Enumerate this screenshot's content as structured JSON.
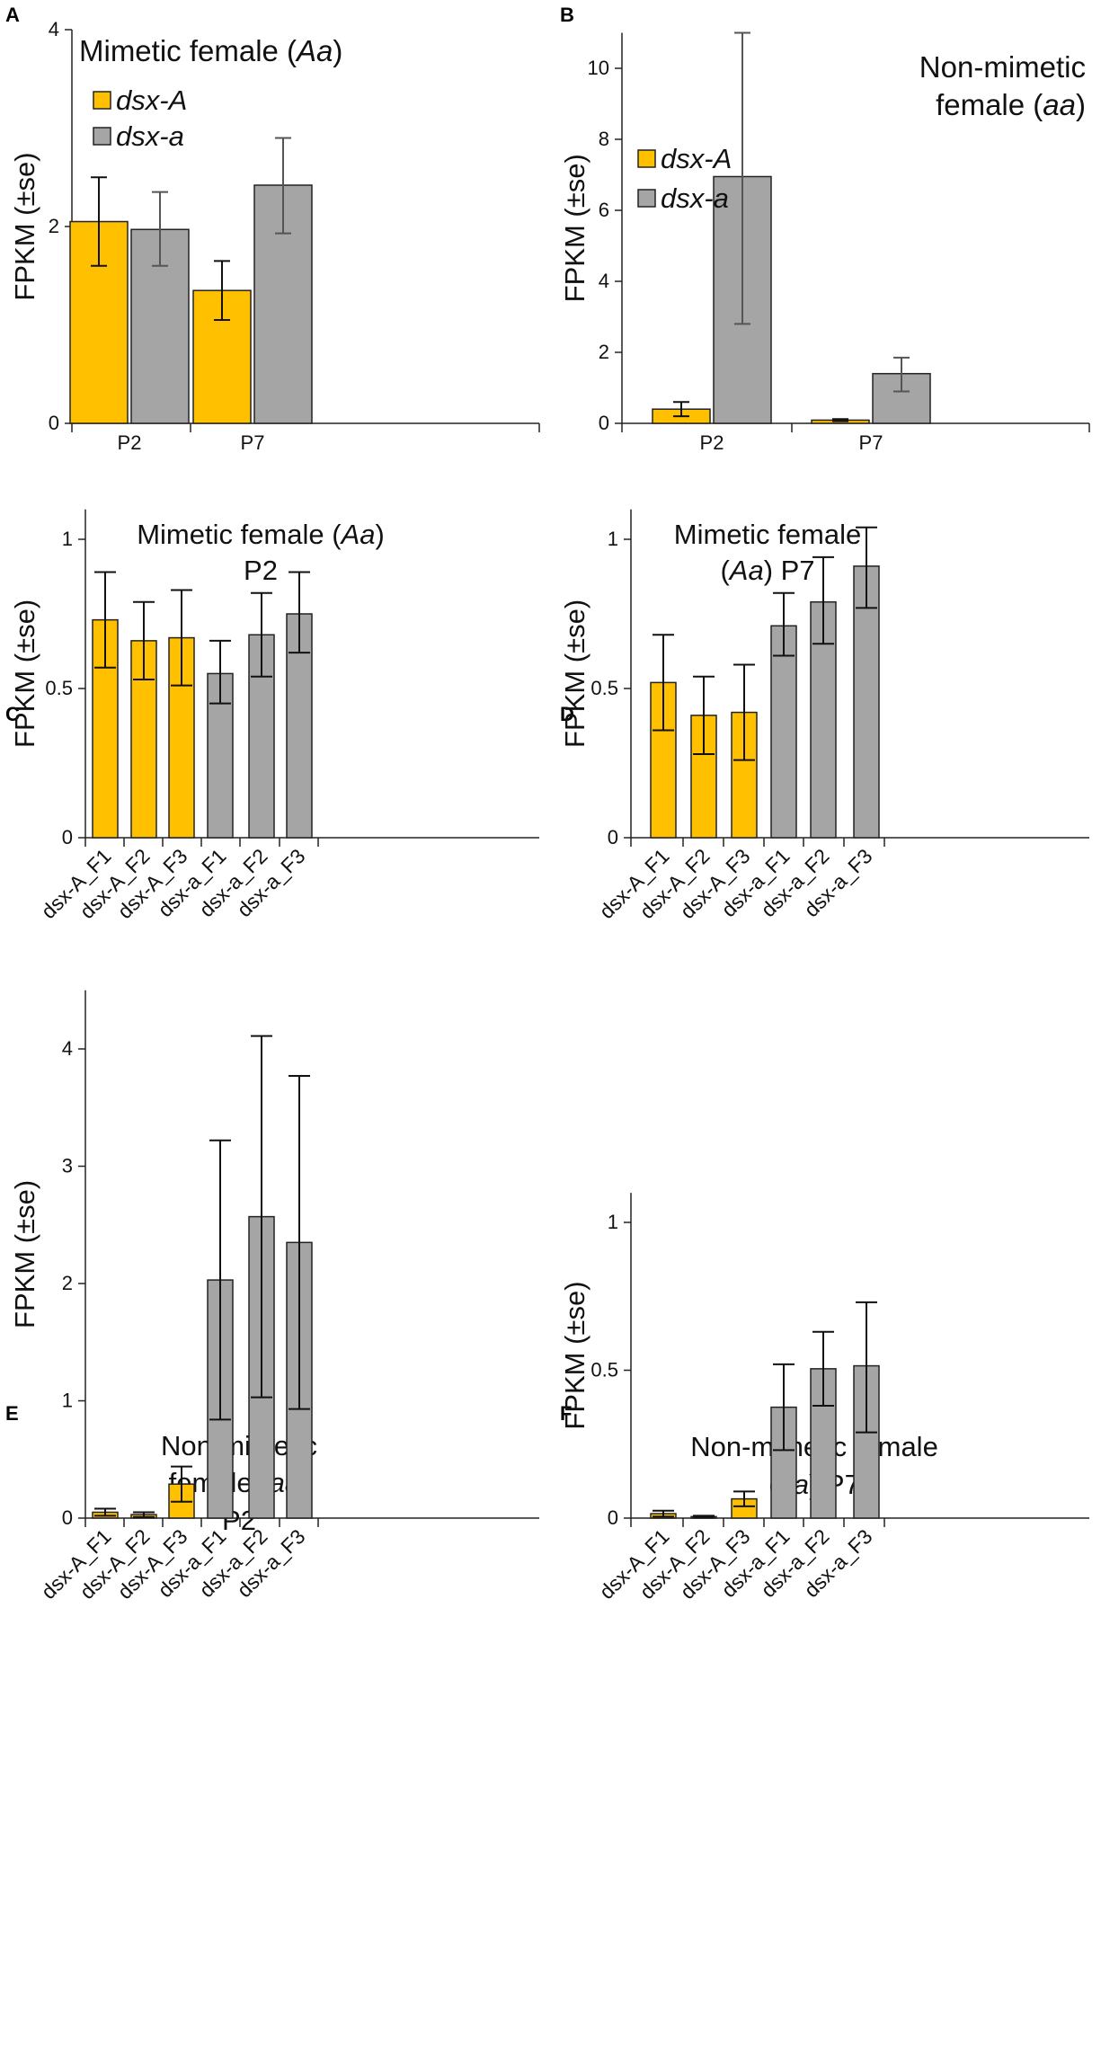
{
  "colors": {
    "dsxA": "#FFC000",
    "dsxa": "#A5A5A5",
    "err_bar_light": "#555555",
    "err_bar_dark": "#111111"
  },
  "chart_data": [
    {
      "panel": "A",
      "type": "bar",
      "ylabel": "FPKM (±se)",
      "title_lines": [
        [
          {
            "t": "Mimetic female ("
          },
          {
            "t": "Aa",
            "i": true
          },
          {
            "t": ")"
          }
        ]
      ],
      "categories": [
        "P2",
        "P7"
      ],
      "ylim": [
        0,
        4
      ],
      "yticks": [
        "0",
        "2",
        "4"
      ],
      "ytick_values": [
        0,
        2,
        4
      ],
      "series": [
        {
          "name": "dsx-A",
          "values": [
            2.05,
            1.35
          ],
          "err_low": [
            1.6,
            1.05
          ],
          "err_high": [
            2.5,
            1.65
          ]
        },
        {
          "name": "dsx-a",
          "values": [
            1.97,
            2.42
          ],
          "err_low": [
            1.6,
            1.93
          ],
          "err_high": [
            2.35,
            2.9
          ]
        }
      ],
      "legend": [
        "dsx-A",
        "dsx-a"
      ],
      "legend_position": "top-left"
    },
    {
      "panel": "B",
      "type": "bar",
      "ylabel": "FPKM (±se)",
      "title_lines": [
        [
          {
            "t": "Non-mimetic"
          }
        ],
        [
          {
            "t": "female ("
          },
          {
            "t": "aa",
            "i": true
          },
          {
            "t": ")"
          }
        ]
      ],
      "categories": [
        "P2",
        "P7"
      ],
      "ylim": [
        0,
        11
      ],
      "yticks": [
        "0",
        "2",
        "4",
        "6",
        "8",
        "10"
      ],
      "ytick_values": [
        0,
        2,
        4,
        6,
        8,
        10
      ],
      "series": [
        {
          "name": "dsx-A",
          "values": [
            0.4,
            0.09
          ],
          "err_low": [
            0.2,
            0.06
          ],
          "err_high": [
            0.6,
            0.12
          ]
        },
        {
          "name": "dsx-a",
          "values": [
            6.95,
            1.4
          ],
          "err_low": [
            2.8,
            0.9
          ],
          "err_high": [
            11.0,
            1.85
          ]
        }
      ],
      "legend": [
        "dsx-A",
        "dsx-a"
      ],
      "legend_position": "middle-right"
    },
    {
      "panel": "C",
      "type": "bar",
      "ylabel": "FPKM (±se)",
      "title_lines": [
        [
          {
            "t": "Mimetic female ("
          },
          {
            "t": "Aa",
            "i": true
          },
          {
            "t": ")"
          }
        ],
        [
          {
            "t": "P2"
          }
        ]
      ],
      "categories": [
        "dsx-A_F1",
        "dsx-A_F2",
        "dsx-A_F3",
        "dsx-a_F1",
        "dsx-a_F2",
        "dsx-a_F3"
      ],
      "ylim": [
        0,
        1.1
      ],
      "yticks": [
        "0",
        "0.5",
        "1"
      ],
      "ytick_values": [
        0,
        0.5,
        1
      ],
      "values": [
        0.73,
        0.66,
        0.67,
        0.55,
        0.68,
        0.75
      ],
      "err_low": [
        0.57,
        0.53,
        0.51,
        0.45,
        0.54,
        0.62
      ],
      "err_high": [
        0.89,
        0.79,
        0.83,
        0.66,
        0.82,
        0.89
      ],
      "groups": [
        "dsx-A",
        "dsx-A",
        "dsx-A",
        "dsx-a",
        "dsx-a",
        "dsx-a"
      ]
    },
    {
      "panel": "D",
      "type": "bar",
      "ylabel": "FPKM (±se)",
      "title_lines": [
        [
          {
            "t": "Mimetic female"
          }
        ],
        [
          {
            "t": "("
          },
          {
            "t": "Aa",
            "i": true
          },
          {
            "t": ") P7"
          }
        ]
      ],
      "categories": [
        "dsx-A_F1",
        "dsx-A_F2",
        "dsx-A_F3",
        "dsx-a_F1",
        "dsx-a_F2",
        "dsx-a_F3"
      ],
      "ylim": [
        0,
        1.1
      ],
      "yticks": [
        "0",
        "0.5",
        "1"
      ],
      "ytick_values": [
        0,
        0.5,
        1
      ],
      "values": [
        0.52,
        0.41,
        0.42,
        0.71,
        0.79,
        0.91
      ],
      "err_low": [
        0.36,
        0.28,
        0.26,
        0.61,
        0.65,
        0.77
      ],
      "err_high": [
        0.68,
        0.54,
        0.58,
        0.82,
        0.94,
        1.04
      ],
      "groups": [
        "dsx-A",
        "dsx-A",
        "dsx-A",
        "dsx-a",
        "dsx-a",
        "dsx-a"
      ]
    },
    {
      "panel": "E",
      "type": "bar",
      "ylabel": "FPKM (±se)",
      "title_lines": [
        [
          {
            "t": "Non-mimetic"
          }
        ],
        [
          {
            "t": "female ("
          },
          {
            "t": "aa",
            "i": true
          },
          {
            "t": ")"
          }
        ],
        [
          {
            "t": "P2"
          }
        ]
      ],
      "categories": [
        "dsx-A_F1",
        "dsx-A_F2",
        "dsx-A_F3",
        "dsx-a_F1",
        "dsx-a_F2",
        "dsx-a_F3"
      ],
      "ylim": [
        0,
        4.5
      ],
      "yticks": [
        "0",
        "1",
        "2",
        "3",
        "4"
      ],
      "ytick_values": [
        0,
        1,
        2,
        3,
        4
      ],
      "values": [
        0.05,
        0.03,
        0.29,
        2.03,
        2.57,
        2.35
      ],
      "err_low": [
        0.02,
        0.01,
        0.14,
        0.84,
        1.03,
        0.93
      ],
      "err_high": [
        0.08,
        0.05,
        0.44,
        3.22,
        4.11,
        3.77
      ],
      "groups": [
        "dsx-A",
        "dsx-A",
        "dsx-A",
        "dsx-a",
        "dsx-a",
        "dsx-a"
      ]
    },
    {
      "panel": "F",
      "type": "bar",
      "ylabel": "FPKM (±se)",
      "title_lines": [
        [
          {
            "t": "Non-mimetic female"
          }
        ],
        [
          {
            "t": "("
          },
          {
            "t": "aa",
            "i": true
          },
          {
            "t": ") P7"
          }
        ]
      ],
      "categories": [
        "dsx-A_F1",
        "dsx-A_F2",
        "dsx-A_F3",
        "dsx-a_F1",
        "dsx-a_F2",
        "dsx-a_F3"
      ],
      "ylim": [
        0,
        1.1
      ],
      "yticks": [
        "0",
        "0.5",
        "1"
      ],
      "ytick_values": [
        0,
        0.5,
        1
      ],
      "values": [
        0.015,
        0.005,
        0.065,
        0.375,
        0.505,
        0.515
      ],
      "err_low": [
        0.005,
        0.002,
        0.04,
        0.23,
        0.38,
        0.29
      ],
      "err_high": [
        0.025,
        0.008,
        0.09,
        0.52,
        0.63,
        0.73
      ],
      "groups": [
        "dsx-A",
        "dsx-A",
        "dsx-A",
        "dsx-a",
        "dsx-a",
        "dsx-a"
      ]
    }
  ]
}
